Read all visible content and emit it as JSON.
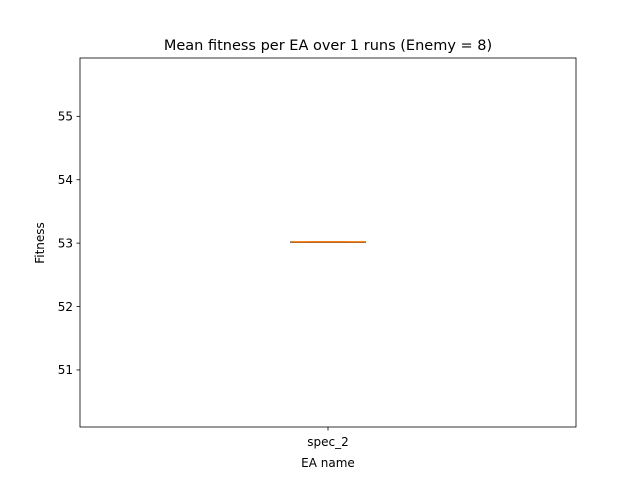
{
  "chart_data": {
    "type": "box",
    "title": "Mean fitness per EA over 1 runs (Enemy = 8)",
    "xlabel": "EA name",
    "ylabel": "Fitness",
    "categories": [
      "spec_2"
    ],
    "boxes": [
      {
        "name": "spec_2",
        "min": 53.02,
        "q1": 53.02,
        "median": 53.02,
        "q3": 53.02,
        "max": 53.02
      }
    ],
    "ylim": [
      50.1,
      55.92
    ],
    "yticks": [
      51,
      52,
      53,
      54,
      55
    ],
    "grid": false,
    "colors": {
      "box": "#000000",
      "median": "#ff7f0e",
      "axes": "#000000"
    }
  }
}
